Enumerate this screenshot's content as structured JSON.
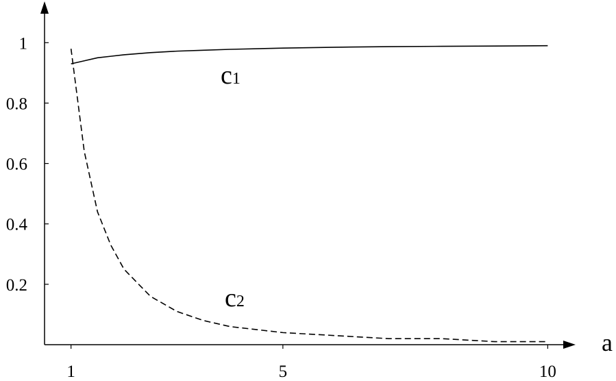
{
  "chart_data": {
    "type": "line",
    "xlabel": "a",
    "x": [
      1,
      1.25,
      1.5,
      1.75,
      2,
      2.5,
      3,
      3.5,
      4,
      5,
      6,
      7,
      8,
      9,
      10
    ],
    "series": [
      {
        "name": "c1",
        "color": "#000000",
        "dash": "solid",
        "values": [
          0.93,
          0.94,
          0.95,
          0.955,
          0.96,
          0.967,
          0.972,
          0.975,
          0.978,
          0.982,
          0.985,
          0.987,
          0.988,
          0.989,
          0.99
        ]
      },
      {
        "name": "c2",
        "color": "#000000",
        "dash": "dashed",
        "values": [
          0.98,
          0.64,
          0.44,
          0.33,
          0.25,
          0.16,
          0.11,
          0.08,
          0.06,
          0.04,
          0.03,
          0.02,
          0.02,
          0.01,
          0.01
        ]
      }
    ],
    "xlim": [
      0.5,
      10.5
    ],
    "xticks": [
      1,
      5,
      10
    ],
    "ylim": [
      0,
      1.13
    ],
    "yticks": [
      0.2,
      0.4,
      0.6,
      0.8,
      1
    ]
  }
}
